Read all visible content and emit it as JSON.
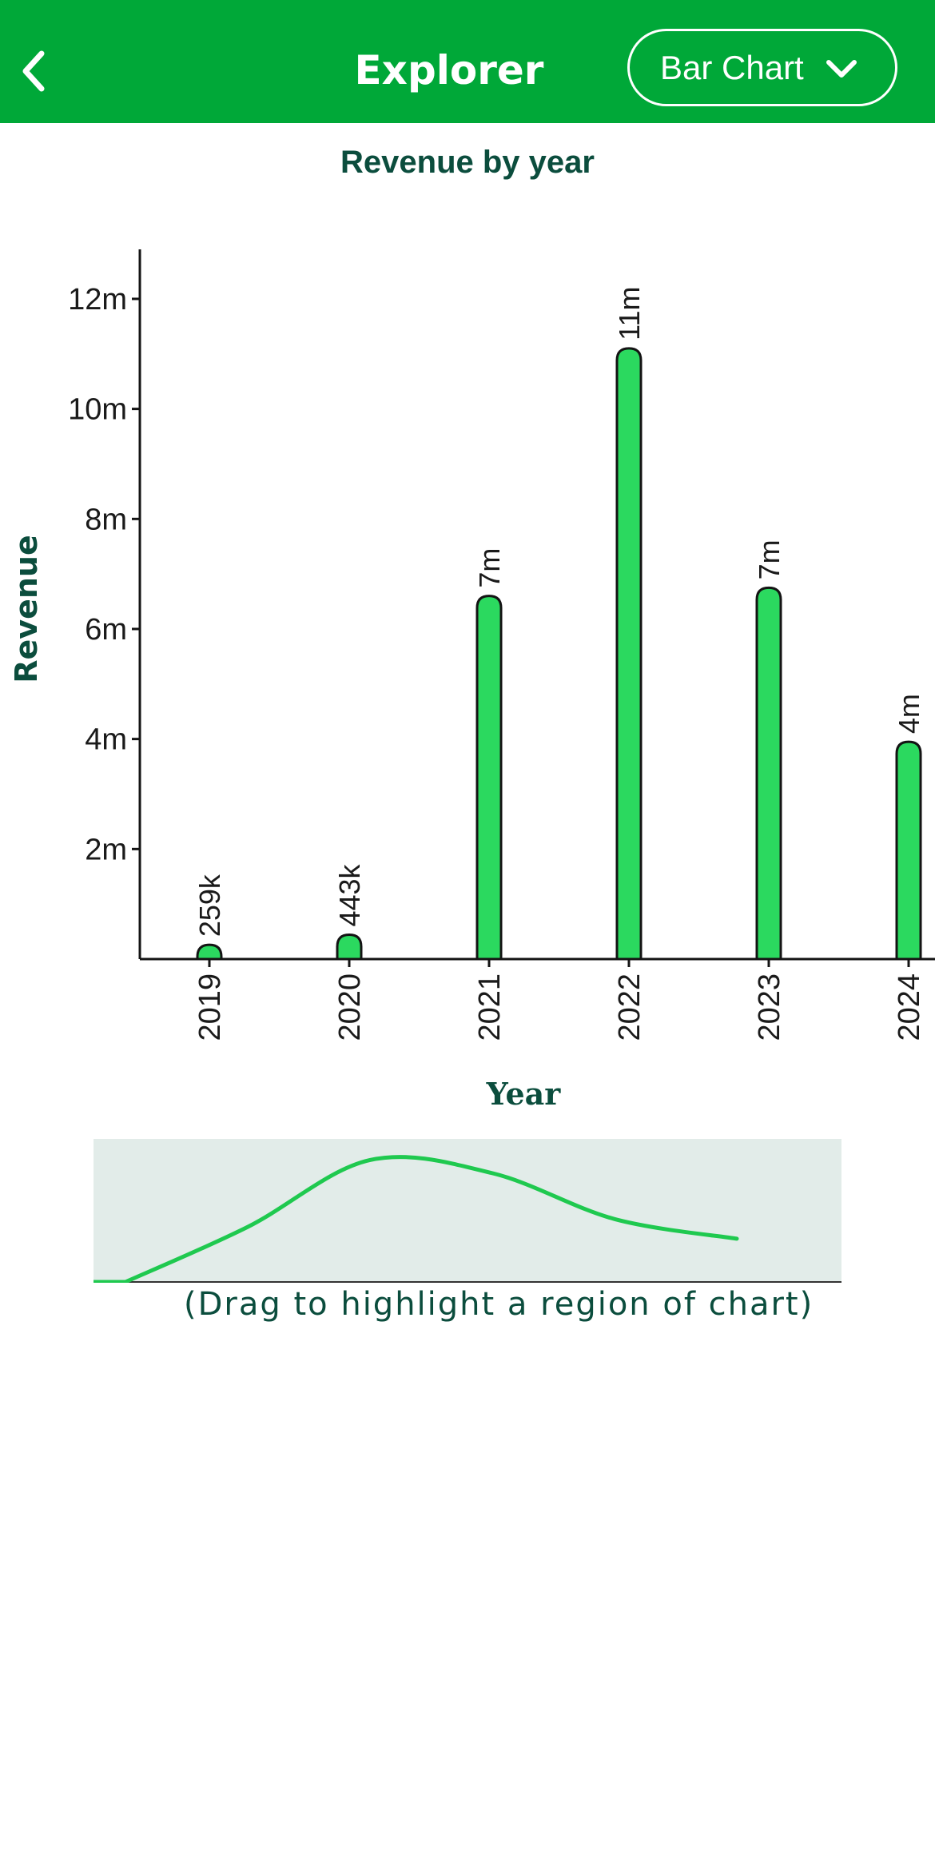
{
  "header": {
    "title": "Explorer",
    "back_icon": "chevron-left-icon",
    "chart_type_select": {
      "selected": "Bar Chart",
      "icon": "chevron-down-icon"
    }
  },
  "colors": {
    "header_bg": "#00a838",
    "bar_fill": "#2bd95f",
    "title_text": "#0b4d3d",
    "brush_bg": "#e2ece9",
    "brush_line": "#1fc94f"
  },
  "chart_data": {
    "type": "bar",
    "title": "Revenue by year",
    "xlabel": "Year",
    "ylabel": "Revenue",
    "categories": [
      "2019",
      "2020",
      "2021",
      "2022",
      "2023",
      "2024"
    ],
    "values": [
      259000,
      443000,
      6600000,
      11100000,
      6750000,
      3950000
    ],
    "value_labels": [
      "259k",
      "443k",
      "7m",
      "11m",
      "7m",
      "4m"
    ],
    "yticks": [
      {
        "value": 2000000,
        "label": "2m"
      },
      {
        "value": 4000000,
        "label": "4m"
      },
      {
        "value": 6000000,
        "label": "6m"
      },
      {
        "value": 8000000,
        "label": "8m"
      },
      {
        "value": 10000000,
        "label": "10m"
      },
      {
        "value": 12000000,
        "label": "12m"
      }
    ],
    "ylim": [
      0,
      12900000
    ],
    "grid": false,
    "legend": "none"
  },
  "brush": {
    "hint": "(Drag to highlight a region of chart)",
    "curve_values": [
      0.0,
      0.42,
      0.93,
      0.83,
      0.48,
      0.33
    ]
  }
}
